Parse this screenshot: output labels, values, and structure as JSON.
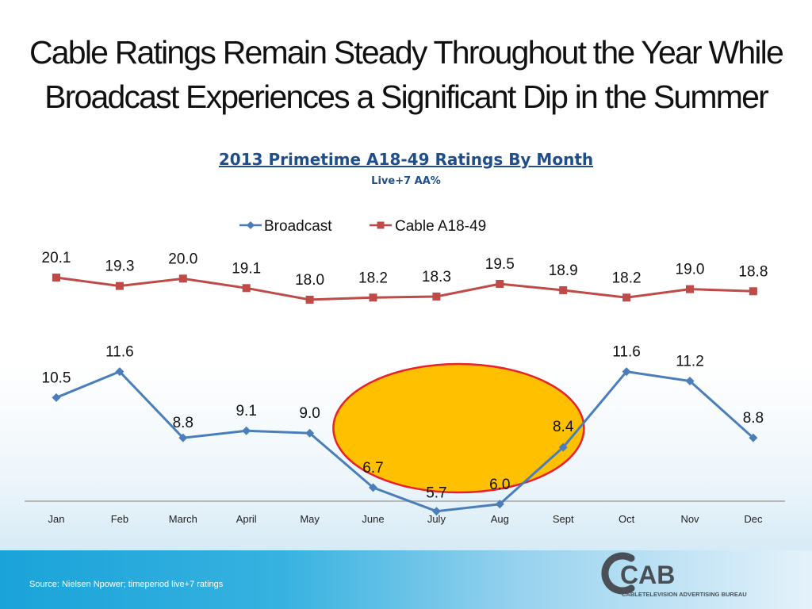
{
  "slide": {
    "title_line1": "Cable Ratings Remain Steady Throughout the Year While",
    "title_line2": "Broadcast Experiences a Significant Dip in the Summer",
    "source": "Source: Nielsen Npower; timeperiod live+7 ratings"
  },
  "logo": {
    "text": "CAB",
    "tagline": "CABLETELEVISION ADVERTISING BUREAU"
  },
  "chart_data": {
    "type": "line",
    "title": "2013 Primetime A18-49 Ratings By Month",
    "subtitle": "Live+7 AA%",
    "categories": [
      "Jan",
      "Feb",
      "March",
      "April",
      "May",
      "June",
      "July",
      "Aug",
      "Sept",
      "Oct",
      "Nov",
      "Dec"
    ],
    "series": [
      {
        "name": "Broadcast",
        "color": "#4a7ebb",
        "marker": "diamond",
        "values": [
          10.5,
          11.6,
          8.8,
          9.1,
          9.0,
          6.7,
          5.7,
          6.0,
          8.4,
          11.6,
          11.2,
          8.8
        ],
        "labels": [
          "10.5",
          "11.6",
          "8.8",
          "9.1",
          "9.0",
          "6.7",
          "5.7",
          "6.0",
          "8.4",
          "11.6",
          "11.2",
          "8.8"
        ]
      },
      {
        "name": "Cable A18-49",
        "color": "#be4b48",
        "marker": "square",
        "values": [
          20.1,
          19.3,
          20.0,
          19.1,
          18.0,
          18.2,
          18.3,
          19.5,
          18.9,
          18.2,
          19.0,
          18.8
        ],
        "labels": [
          "20.1",
          "19.3",
          "20.0",
          "19.1",
          "18.0",
          "18.2",
          "18.3",
          "19.5",
          "18.9",
          "18.2",
          "19.0",
          "18.8"
        ]
      }
    ],
    "legend": "top-center",
    "grid": false,
    "highlight": {
      "categories": [
        "June",
        "July",
        "Aug"
      ],
      "fill": "#ffc000",
      "stroke": "#e8212b"
    }
  }
}
